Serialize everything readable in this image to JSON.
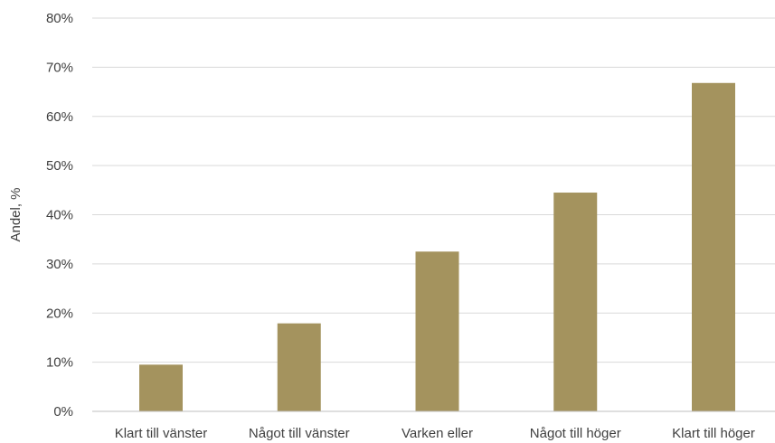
{
  "chart_data": {
    "type": "bar",
    "categories": [
      "Klart till vänster",
      "Något till vänster",
      "Varken eller",
      "Något till höger",
      "Klart till höger"
    ],
    "values": [
      9.5,
      17.9,
      32.5,
      44.5,
      66.8
    ],
    "ylabel": "Andel, %",
    "ylim": [
      0,
      80
    ],
    "yticks": [
      "0%",
      "10%",
      "20%",
      "30%",
      "40%",
      "50%",
      "60%",
      "70%",
      "80%"
    ],
    "ytick_values": [
      0,
      10,
      20,
      30,
      40,
      50,
      60,
      70,
      80
    ],
    "bar_color": "#a4935e",
    "grid": true,
    "legend": "none"
  }
}
